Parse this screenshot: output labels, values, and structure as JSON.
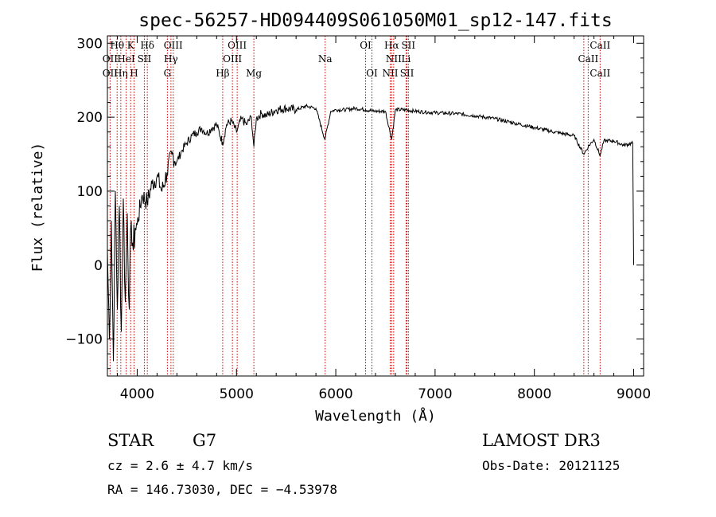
{
  "chart_data": {
    "type": "line",
    "title": "spec-56257-HD094409S061050M01_sp12-147.fits",
    "xlabel": "Wavelength (Å)",
    "ylabel": "Flux (relative)",
    "xlim": [
      3700,
      9100
    ],
    "ylim": [
      -150,
      310
    ],
    "x_ticks": [
      4000,
      5000,
      6000,
      7000,
      8000,
      9000
    ],
    "x_tick_labels": [
      "4000",
      "5000",
      "6000",
      "7000",
      "8000",
      "9000"
    ],
    "y_ticks": [
      -100,
      0,
      100,
      200,
      300
    ],
    "y_tick_labels": [
      "−100",
      "0",
      "100",
      "200",
      "300"
    ],
    "series": [
      {
        "name": "spectrum",
        "x": [
          3700,
          3720,
          3740,
          3760,
          3780,
          3800,
          3820,
          3840,
          3860,
          3880,
          3900,
          3920,
          3940,
          3960,
          3980,
          4000,
          4050,
          4100,
          4150,
          4200,
          4250,
          4300,
          4350,
          4400,
          4450,
          4500,
          4550,
          4600,
          4650,
          4700,
          4750,
          4800,
          4861,
          4900,
          4950,
          5000,
          5050,
          5100,
          5150,
          5175,
          5200,
          5250,
          5300,
          5400,
          5500,
          5600,
          5700,
          5800,
          5890,
          5950,
          6000,
          6100,
          6200,
          6300,
          6400,
          6500,
          6563,
          6600,
          6700,
          6800,
          6900,
          7000,
          7200,
          7400,
          7600,
          7800,
          8000,
          8200,
          8400,
          8498,
          8542,
          8600,
          8662,
          8700,
          8800,
          8900,
          8990,
          9000
        ],
        "y": [
          20,
          -100,
          60,
          -130,
          100,
          -60,
          80,
          -90,
          90,
          -50,
          70,
          -60,
          60,
          20,
          50,
          55,
          95,
          85,
          110,
          120,
          100,
          125,
          150,
          140,
          155,
          165,
          175,
          180,
          185,
          178,
          185,
          190,
          165,
          190,
          195,
          180,
          198,
          190,
          200,
          160,
          198,
          205,
          202,
          210,
          212,
          210,
          215,
          212,
          170,
          208,
          210,
          210,
          212,
          210,
          208,
          208,
          170,
          210,
          210,
          208,
          207,
          206,
          205,
          202,
          198,
          192,
          186,
          180,
          175,
          150,
          160,
          170,
          148,
          168,
          168,
          162,
          165,
          0
        ]
      }
    ],
    "line_labels": {
      "row1": [
        {
          "label": "Hθ",
          "wave": 3798
        },
        {
          "label": "K",
          "wave": 3934
        },
        {
          "label": "Hδ",
          "wave": 4102
        },
        {
          "label": "OIII",
          "wave": 4363
        },
        {
          "label": "OIII",
          "wave": 5007
        },
        {
          "label": "OI",
          "wave": 6300
        },
        {
          "label": "Hα",
          "wave": 6563
        },
        {
          "label": "SII",
          "wave": 6731
        },
        {
          "label": "CaII",
          "wave": 8662
        }
      ],
      "row2": [
        {
          "label": "OII",
          "wave": 3727
        },
        {
          "label": "HeI",
          "wave": 3889
        },
        {
          "label": "SII",
          "wave": 4072
        },
        {
          "label": "Hγ",
          "wave": 4340
        },
        {
          "label": "OIII",
          "wave": 4959
        },
        {
          "label": "Na",
          "wave": 5893
        },
        {
          "label": "NII",
          "wave": 6583
        },
        {
          "label": "Li",
          "wave": 6708
        },
        {
          "label": "CaII",
          "wave": 8542
        }
      ],
      "row3": [
        {
          "label": "OII",
          "wave": 3727
        },
        {
          "label": "Hη",
          "wave": 3835
        },
        {
          "label": "H",
          "wave": 3968
        },
        {
          "label": "G",
          "wave": 4304
        },
        {
          "label": "Hβ",
          "wave": 4861
        },
        {
          "label": "Mg",
          "wave": 5175
        },
        {
          "label": "OI",
          "wave": 6364
        },
        {
          "label": "NII",
          "wave": 6548
        },
        {
          "label": "SII",
          "wave": 6717
        },
        {
          "label": "CaII",
          "wave": 8662
        }
      ]
    },
    "marker_lines": [
      3727,
      3798,
      3835,
      3889,
      3934,
      3968,
      4072,
      4102,
      4304,
      4340,
      4363,
      4861,
      4959,
      5007,
      5175,
      5893,
      6300,
      6364,
      6548,
      6563,
      6583,
      6708,
      6717,
      6731,
      8498,
      8542,
      8662
    ],
    "marker_color": "#cc0000"
  },
  "info": {
    "class_label": "STAR",
    "subclass": "G7",
    "survey": "LAMOST DR3",
    "cz": "cz = 2.6 ± 4.7 km/s",
    "obs_date": "Obs-Date: 20121125",
    "radec": "RA = 146.73030, DEC =  −4.53978"
  }
}
